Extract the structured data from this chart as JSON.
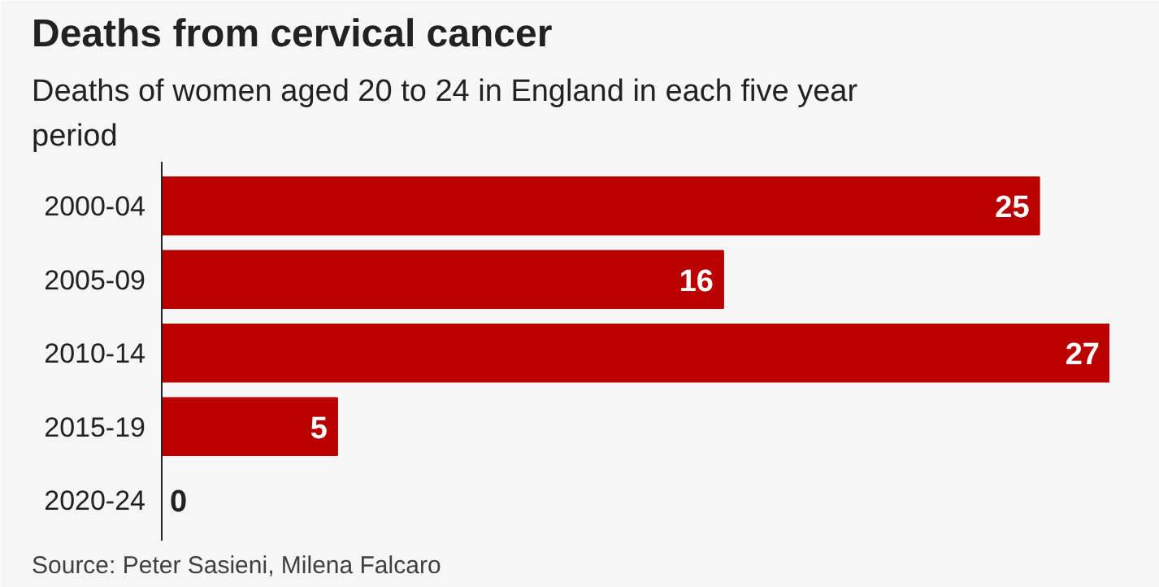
{
  "chart_data": {
    "type": "bar",
    "orientation": "horizontal",
    "title": "Deaths from cervical cancer",
    "subtitle": "Deaths of women aged 20 to 24 in England in each five year period",
    "categories": [
      "2000-04",
      "2005-09",
      "2010-14",
      "2015-19",
      "2020-24"
    ],
    "values": [
      25,
      16,
      27,
      5,
      0
    ],
    "color": "#bb0000",
    "data_labels": true,
    "grid": false,
    "annotations": [
      "Source: Peter Sasieni, Milena Falcaro"
    ]
  }
}
